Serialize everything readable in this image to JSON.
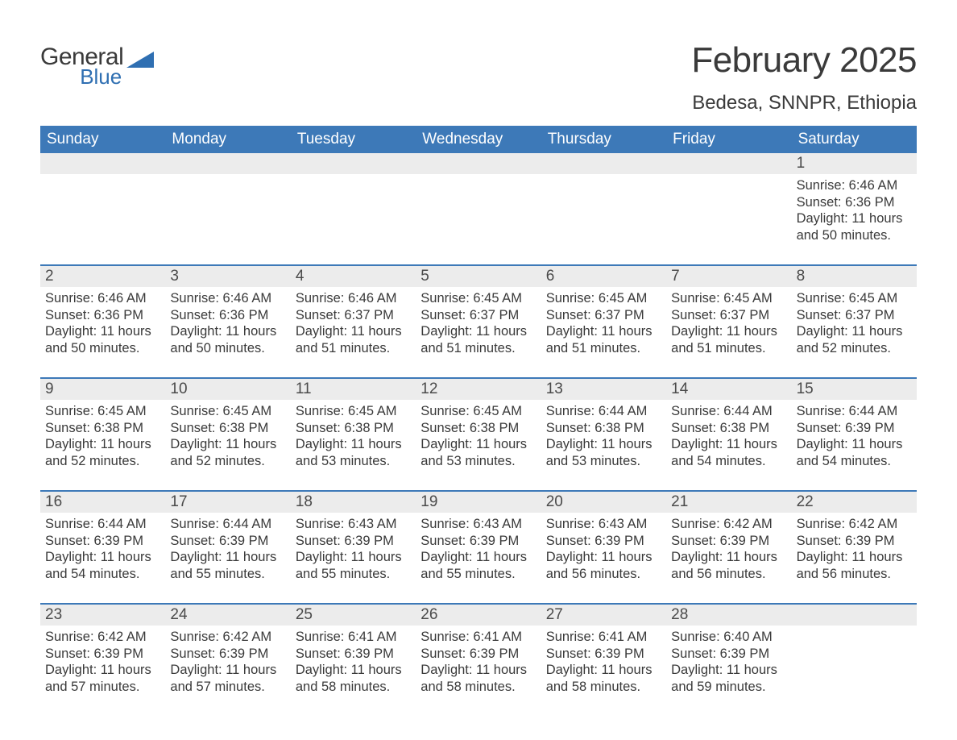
{
  "logo": {
    "word1": "General",
    "word2": "Blue",
    "shape_color": "#2f6fb2",
    "word1_color": "#3a3a3a",
    "word2_color": "#2f6fb2"
  },
  "title": "February 2025",
  "location": "Bedesa, SNNPR, Ethiopia",
  "colors": {
    "header_bg": "#3d79b8",
    "header_text": "#ffffff",
    "daynum_bg": "#ececec",
    "week_border": "#3d79b8",
    "body_text": "#3a3a3a",
    "page_bg": "#ffffff"
  },
  "weekdays": [
    "Sunday",
    "Monday",
    "Tuesday",
    "Wednesday",
    "Thursday",
    "Friday",
    "Saturday"
  ],
  "weeks": [
    [
      {
        "day": "",
        "sunrise": "",
        "sunset": "",
        "daylight1": "",
        "daylight2": ""
      },
      {
        "day": "",
        "sunrise": "",
        "sunset": "",
        "daylight1": "",
        "daylight2": ""
      },
      {
        "day": "",
        "sunrise": "",
        "sunset": "",
        "daylight1": "",
        "daylight2": ""
      },
      {
        "day": "",
        "sunrise": "",
        "sunset": "",
        "daylight1": "",
        "daylight2": ""
      },
      {
        "day": "",
        "sunrise": "",
        "sunset": "",
        "daylight1": "",
        "daylight2": ""
      },
      {
        "day": "",
        "sunrise": "",
        "sunset": "",
        "daylight1": "",
        "daylight2": ""
      },
      {
        "day": "1",
        "sunrise": "Sunrise: 6:46 AM",
        "sunset": "Sunset: 6:36 PM",
        "daylight1": "Daylight: 11 hours",
        "daylight2": "and 50 minutes."
      }
    ],
    [
      {
        "day": "2",
        "sunrise": "Sunrise: 6:46 AM",
        "sunset": "Sunset: 6:36 PM",
        "daylight1": "Daylight: 11 hours",
        "daylight2": "and 50 minutes."
      },
      {
        "day": "3",
        "sunrise": "Sunrise: 6:46 AM",
        "sunset": "Sunset: 6:36 PM",
        "daylight1": "Daylight: 11 hours",
        "daylight2": "and 50 minutes."
      },
      {
        "day": "4",
        "sunrise": "Sunrise: 6:46 AM",
        "sunset": "Sunset: 6:37 PM",
        "daylight1": "Daylight: 11 hours",
        "daylight2": "and 51 minutes."
      },
      {
        "day": "5",
        "sunrise": "Sunrise: 6:45 AM",
        "sunset": "Sunset: 6:37 PM",
        "daylight1": "Daylight: 11 hours",
        "daylight2": "and 51 minutes."
      },
      {
        "day": "6",
        "sunrise": "Sunrise: 6:45 AM",
        "sunset": "Sunset: 6:37 PM",
        "daylight1": "Daylight: 11 hours",
        "daylight2": "and 51 minutes."
      },
      {
        "day": "7",
        "sunrise": "Sunrise: 6:45 AM",
        "sunset": "Sunset: 6:37 PM",
        "daylight1": "Daylight: 11 hours",
        "daylight2": "and 51 minutes."
      },
      {
        "day": "8",
        "sunrise": "Sunrise: 6:45 AM",
        "sunset": "Sunset: 6:37 PM",
        "daylight1": "Daylight: 11 hours",
        "daylight2": "and 52 minutes."
      }
    ],
    [
      {
        "day": "9",
        "sunrise": "Sunrise: 6:45 AM",
        "sunset": "Sunset: 6:38 PM",
        "daylight1": "Daylight: 11 hours",
        "daylight2": "and 52 minutes."
      },
      {
        "day": "10",
        "sunrise": "Sunrise: 6:45 AM",
        "sunset": "Sunset: 6:38 PM",
        "daylight1": "Daylight: 11 hours",
        "daylight2": "and 52 minutes."
      },
      {
        "day": "11",
        "sunrise": "Sunrise: 6:45 AM",
        "sunset": "Sunset: 6:38 PM",
        "daylight1": "Daylight: 11 hours",
        "daylight2": "and 53 minutes."
      },
      {
        "day": "12",
        "sunrise": "Sunrise: 6:45 AM",
        "sunset": "Sunset: 6:38 PM",
        "daylight1": "Daylight: 11 hours",
        "daylight2": "and 53 minutes."
      },
      {
        "day": "13",
        "sunrise": "Sunrise: 6:44 AM",
        "sunset": "Sunset: 6:38 PM",
        "daylight1": "Daylight: 11 hours",
        "daylight2": "and 53 minutes."
      },
      {
        "day": "14",
        "sunrise": "Sunrise: 6:44 AM",
        "sunset": "Sunset: 6:38 PM",
        "daylight1": "Daylight: 11 hours",
        "daylight2": "and 54 minutes."
      },
      {
        "day": "15",
        "sunrise": "Sunrise: 6:44 AM",
        "sunset": "Sunset: 6:39 PM",
        "daylight1": "Daylight: 11 hours",
        "daylight2": "and 54 minutes."
      }
    ],
    [
      {
        "day": "16",
        "sunrise": "Sunrise: 6:44 AM",
        "sunset": "Sunset: 6:39 PM",
        "daylight1": "Daylight: 11 hours",
        "daylight2": "and 54 minutes."
      },
      {
        "day": "17",
        "sunrise": "Sunrise: 6:44 AM",
        "sunset": "Sunset: 6:39 PM",
        "daylight1": "Daylight: 11 hours",
        "daylight2": "and 55 minutes."
      },
      {
        "day": "18",
        "sunrise": "Sunrise: 6:43 AM",
        "sunset": "Sunset: 6:39 PM",
        "daylight1": "Daylight: 11 hours",
        "daylight2": "and 55 minutes."
      },
      {
        "day": "19",
        "sunrise": "Sunrise: 6:43 AM",
        "sunset": "Sunset: 6:39 PM",
        "daylight1": "Daylight: 11 hours",
        "daylight2": "and 55 minutes."
      },
      {
        "day": "20",
        "sunrise": "Sunrise: 6:43 AM",
        "sunset": "Sunset: 6:39 PM",
        "daylight1": "Daylight: 11 hours",
        "daylight2": "and 56 minutes."
      },
      {
        "day": "21",
        "sunrise": "Sunrise: 6:42 AM",
        "sunset": "Sunset: 6:39 PM",
        "daylight1": "Daylight: 11 hours",
        "daylight2": "and 56 minutes."
      },
      {
        "day": "22",
        "sunrise": "Sunrise: 6:42 AM",
        "sunset": "Sunset: 6:39 PM",
        "daylight1": "Daylight: 11 hours",
        "daylight2": "and 56 minutes."
      }
    ],
    [
      {
        "day": "23",
        "sunrise": "Sunrise: 6:42 AM",
        "sunset": "Sunset: 6:39 PM",
        "daylight1": "Daylight: 11 hours",
        "daylight2": "and 57 minutes."
      },
      {
        "day": "24",
        "sunrise": "Sunrise: 6:42 AM",
        "sunset": "Sunset: 6:39 PM",
        "daylight1": "Daylight: 11 hours",
        "daylight2": "and 57 minutes."
      },
      {
        "day": "25",
        "sunrise": "Sunrise: 6:41 AM",
        "sunset": "Sunset: 6:39 PM",
        "daylight1": "Daylight: 11 hours",
        "daylight2": "and 58 minutes."
      },
      {
        "day": "26",
        "sunrise": "Sunrise: 6:41 AM",
        "sunset": "Sunset: 6:39 PM",
        "daylight1": "Daylight: 11 hours",
        "daylight2": "and 58 minutes."
      },
      {
        "day": "27",
        "sunrise": "Sunrise: 6:41 AM",
        "sunset": "Sunset: 6:39 PM",
        "daylight1": "Daylight: 11 hours",
        "daylight2": "and 58 minutes."
      },
      {
        "day": "28",
        "sunrise": "Sunrise: 6:40 AM",
        "sunset": "Sunset: 6:39 PM",
        "daylight1": "Daylight: 11 hours",
        "daylight2": "and 59 minutes."
      },
      {
        "day": "",
        "sunrise": "",
        "sunset": "",
        "daylight1": "",
        "daylight2": ""
      }
    ]
  ]
}
